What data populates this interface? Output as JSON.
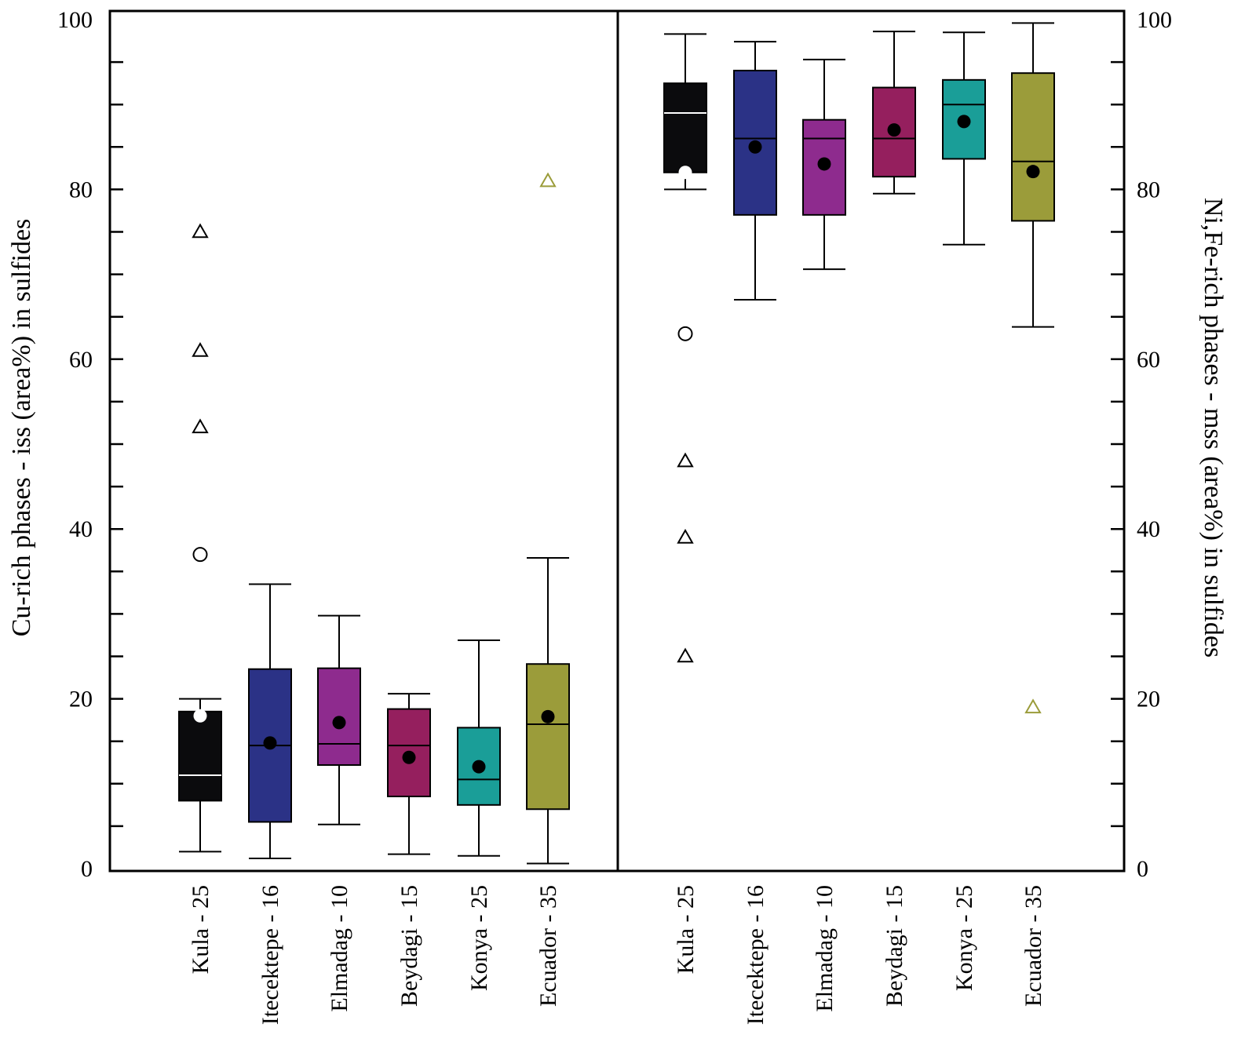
{
  "chart_data": {
    "type": "box",
    "ylim": [
      0,
      100
    ],
    "yticks": [
      0,
      20,
      40,
      60,
      80,
      100
    ],
    "grid": false,
    "colors": {
      "Kula": "#0b0b0d",
      "Itecektepe": "#2b3286",
      "Elmadag": "#8e2b8e",
      "Beydagi": "#951f5e",
      "Konya": "#1a9e98",
      "Ecuador": "#9b9c3a"
    },
    "panels": [
      {
        "ylabel": "Cu-rich phases - iss (area%) in sulfides",
        "axis_side": "left",
        "categories": [
          "Kula - 25",
          "Itecektepe - 16",
          "Elmadag - 10",
          "Beydagi - 15",
          "Konya - 25",
          "Ecuador - 35"
        ],
        "groups": [
          "Kula",
          "Itecektepe",
          "Elmadag",
          "Beydagi",
          "Konya",
          "Ecuador"
        ],
        "boxes": [
          {
            "whisker_low": 2,
            "q1": 8,
            "median": 11,
            "q3": 18.5,
            "whisker_high": 20,
            "mean": 18
          },
          {
            "whisker_low": 1.2,
            "q1": 5.5,
            "median": 14.5,
            "q3": 23.5,
            "whisker_high": 33.5,
            "mean": 14.8
          },
          {
            "whisker_low": 5.2,
            "q1": 12.2,
            "median": 14.7,
            "q3": 23.6,
            "whisker_high": 29.8,
            "mean": 17.2
          },
          {
            "whisker_low": 1.7,
            "q1": 8.5,
            "median": 14.5,
            "q3": 18.8,
            "whisker_high": 20.6,
            "mean": 13.1
          },
          {
            "whisker_low": 1.5,
            "q1": 7.5,
            "median": 10.5,
            "q3": 16.6,
            "whisker_high": 26.9,
            "mean": 12
          },
          {
            "whisker_low": 0.6,
            "q1": 7,
            "median": 17,
            "q3": 24.1,
            "whisker_high": 36.6,
            "mean": 17.9
          }
        ],
        "outliers": [
          {
            "group": "Kula",
            "value": 37,
            "marker": "circle"
          },
          {
            "group": "Kula",
            "value": 52,
            "marker": "triangle"
          },
          {
            "group": "Kula",
            "value": 61,
            "marker": "triangle"
          },
          {
            "group": "Kula",
            "value": 75,
            "marker": "triangle"
          },
          {
            "group": "Ecuador",
            "value": 81,
            "marker": "triangle"
          }
        ]
      },
      {
        "ylabel": "Ni,Fe-rich phases - mss (area%) in sulfides",
        "axis_side": "right",
        "categories": [
          "Kula - 25",
          "Itecektepe - 16",
          "Elmadag - 10",
          "Beydagi - 15",
          "Konya - 25",
          "Ecuador - 35"
        ],
        "groups": [
          "Kula",
          "Itecektepe",
          "Elmadag",
          "Beydagi",
          "Konya",
          "Ecuador"
        ],
        "boxes": [
          {
            "whisker_low": 80,
            "q1": 82,
            "median": 89,
            "q3": 92.5,
            "whisker_high": 98.3,
            "mean": 82
          },
          {
            "whisker_low": 67,
            "q1": 77,
            "median": 86,
            "q3": 94,
            "whisker_high": 97.4,
            "mean": 85
          },
          {
            "whisker_low": 70.6,
            "q1": 77,
            "median": 86,
            "q3": 88.2,
            "whisker_high": 95.3,
            "mean": 83
          },
          {
            "whisker_low": 79.5,
            "q1": 81.5,
            "median": 86,
            "q3": 92,
            "whisker_high": 98.6,
            "mean": 87
          },
          {
            "whisker_low": 73.5,
            "q1": 83.6,
            "median": 90,
            "q3": 92.9,
            "whisker_high": 98.5,
            "mean": 88
          },
          {
            "whisker_low": 63.8,
            "q1": 76.3,
            "median": 83.3,
            "q3": 93.7,
            "whisker_high": 99.6,
            "mean": 82.1
          }
        ],
        "outliers": [
          {
            "group": "Kula",
            "value": 63,
            "marker": "circle"
          },
          {
            "group": "Kula",
            "value": 48,
            "marker": "triangle"
          },
          {
            "group": "Kula",
            "value": 39,
            "marker": "triangle"
          },
          {
            "group": "Kula",
            "value": 25,
            "marker": "triangle"
          },
          {
            "group": "Ecuador",
            "value": 19,
            "marker": "triangle"
          }
        ]
      }
    ]
  }
}
